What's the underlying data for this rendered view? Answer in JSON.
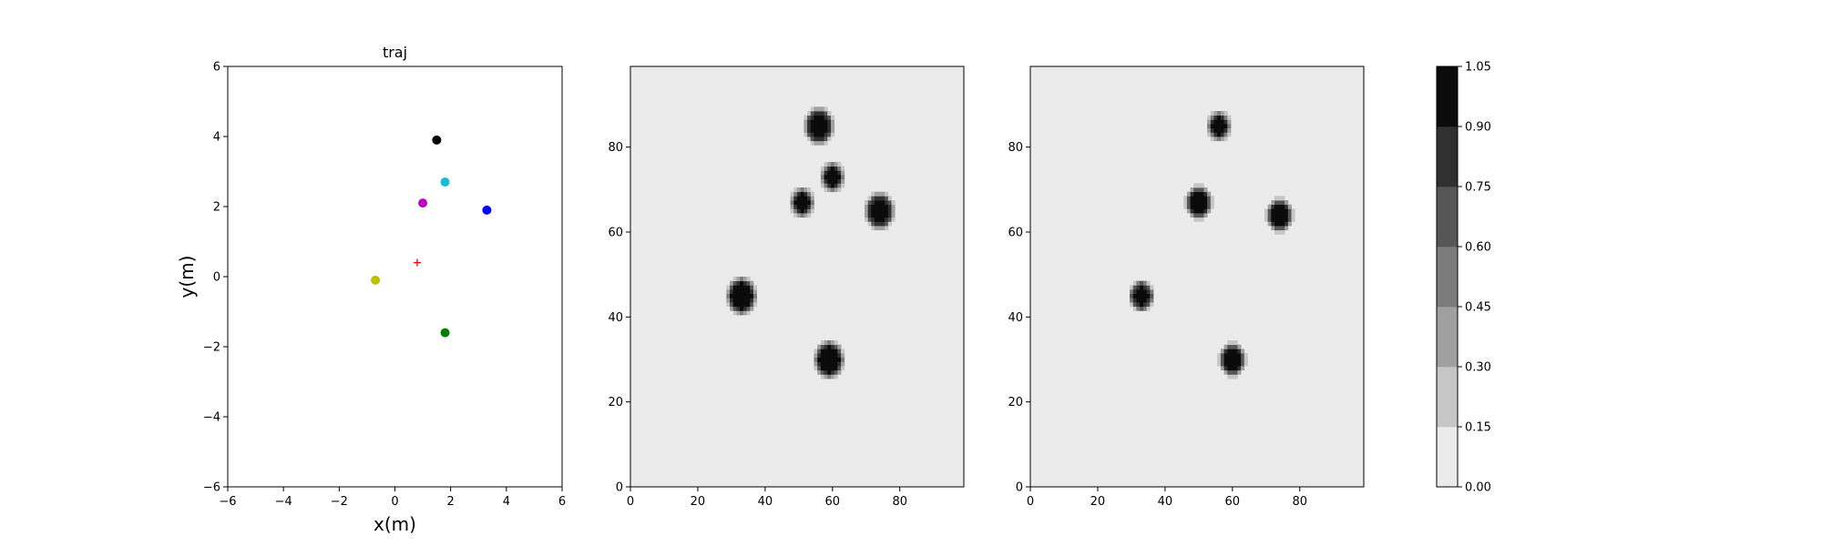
{
  "chart_data": [
    {
      "type": "scatter",
      "title": "traj",
      "xlabel": "x(m)",
      "ylabel": "y(m)",
      "xlim": [
        -6,
        6
      ],
      "ylim": [
        -6,
        6
      ],
      "xticks": [
        "−6",
        "−4",
        "−2",
        "0",
        "2",
        "4",
        "6"
      ],
      "yticks": [
        "−6",
        "−4",
        "−2",
        "0",
        "2",
        "4",
        "6"
      ],
      "grid": false,
      "points": [
        {
          "x": 1.5,
          "y": 3.9,
          "color": "#000000",
          "marker": "circle"
        },
        {
          "x": 1.8,
          "y": 2.7,
          "color": "#17becf",
          "marker": "circle"
        },
        {
          "x": 1.0,
          "y": 2.1,
          "color": "#bf00bf",
          "marker": "circle"
        },
        {
          "x": 3.3,
          "y": 1.9,
          "color": "#0000ff",
          "marker": "circle"
        },
        {
          "x": 0.8,
          "y": 0.4,
          "color": "#ff0000",
          "marker": "plus"
        },
        {
          "x": -0.7,
          "y": -0.1,
          "color": "#bfbf00",
          "marker": "circle"
        },
        {
          "x": 1.8,
          "y": -1.6,
          "color": "#008000",
          "marker": "circle"
        }
      ]
    },
    {
      "type": "heatmap",
      "title": "",
      "xlim": [
        0,
        99
      ],
      "ylim": [
        0,
        99
      ],
      "xticks": [
        "0",
        "20",
        "40",
        "60",
        "80"
      ],
      "yticks": [
        "0",
        "20",
        "40",
        "60",
        "80"
      ],
      "background_value": 0.05,
      "blobs": [
        {
          "cx": 56,
          "cy": 85,
          "r": 3.8,
          "peak": 1.0
        },
        {
          "cx": 60,
          "cy": 73,
          "r": 3.0,
          "peak": 1.0
        },
        {
          "cx": 51,
          "cy": 67,
          "r": 3.0,
          "peak": 1.0
        },
        {
          "cx": 74,
          "cy": 65,
          "r": 3.8,
          "peak": 1.0
        },
        {
          "cx": 33,
          "cy": 45,
          "r": 4.0,
          "peak": 1.0
        },
        {
          "cx": 59,
          "cy": 30,
          "r": 4.0,
          "peak": 1.0
        }
      ]
    },
    {
      "type": "heatmap",
      "title": "",
      "xlim": [
        0,
        99
      ],
      "ylim": [
        0,
        99
      ],
      "xticks": [
        "0",
        "20",
        "40",
        "60",
        "80"
      ],
      "yticks": [
        "0",
        "20",
        "40",
        "60",
        "80"
      ],
      "background_value": 0.05,
      "blobs": [
        {
          "cx": 56,
          "cy": 85,
          "r": 3.0,
          "peak": 1.0
        },
        {
          "cx": 50,
          "cy": 67,
          "r": 3.4,
          "peak": 1.0
        },
        {
          "cx": 74,
          "cy": 64,
          "r": 3.4,
          "peak": 1.0
        },
        {
          "cx": 33,
          "cy": 45,
          "r": 3.2,
          "peak": 1.0
        },
        {
          "cx": 60,
          "cy": 30,
          "r": 3.4,
          "peak": 1.0
        }
      ]
    }
  ],
  "colorbar": {
    "levels": [
      0.0,
      0.15,
      0.3,
      0.45,
      0.6,
      0.75,
      0.9,
      1.05
    ],
    "labels": [
      "0.00",
      "0.15",
      "0.30",
      "0.45",
      "0.60",
      "0.75",
      "0.90",
      "1.05"
    ],
    "colors": [
      "#ebebeb",
      "#c6c6c6",
      "#a0a0a0",
      "#7b7b7b",
      "#565656",
      "#303030",
      "#0b0b0b"
    ]
  }
}
